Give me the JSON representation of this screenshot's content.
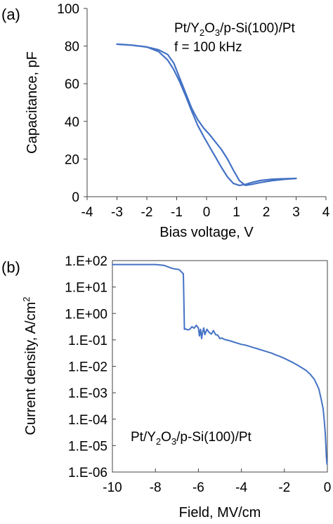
{
  "chart_data": [
    {
      "type": "line",
      "panel_label": "(a)",
      "annotation_line1_parts": [
        "Pt/Y",
        "2",
        "O",
        "3",
        "/p-Si(100)/Pt"
      ],
      "annotation_line2": "f = 100 kHz",
      "xlabel": "Bias voltage, V",
      "ylabel": "Capacitance, pF",
      "xlim": [
        -4,
        4
      ],
      "ylim": [
        0,
        100
      ],
      "xticks": [
        "-4",
        "-3",
        "-2",
        "-1",
        "0",
        "1",
        "2",
        "3",
        "4"
      ],
      "yticks": [
        "0",
        "20",
        "40",
        "60",
        "80",
        "100"
      ],
      "grid": false,
      "color": "#4472C4",
      "series": [
        {
          "x": [
            -3.0,
            -2.5,
            -2.0,
            -1.6,
            -1.3,
            -1.1,
            -0.9,
            -0.7,
            -0.5,
            -0.3,
            -0.1,
            0.1,
            0.3,
            0.5,
            0.7,
            0.9,
            1.1,
            1.3,
            1.5,
            1.8,
            2.2,
            2.6,
            3.0
          ],
          "y": [
            81,
            80.5,
            79.5,
            78,
            75.5,
            71,
            63,
            55,
            47,
            41,
            36.5,
            33,
            29,
            25,
            20,
            14,
            8.5,
            6,
            6.5,
            7.5,
            8.5,
            9.2,
            9.7
          ]
        },
        {
          "x": [
            3.0,
            2.6,
            2.2,
            1.8,
            1.5,
            1.3,
            1.1,
            0.9,
            0.7,
            0.5,
            0.3,
            0.1,
            -0.1,
            -0.3,
            -0.5,
            -0.7,
            -0.9,
            -1.1,
            -1.3,
            -1.6,
            -2.0,
            -2.5,
            -3.0
          ],
          "y": [
            9.7,
            9.5,
            9.3,
            8.6,
            7.5,
            6.5,
            6.0,
            7.0,
            10.5,
            15.5,
            21,
            26.5,
            32,
            38,
            45.5,
            53.5,
            61,
            67.5,
            72.5,
            77,
            79.5,
            80.5,
            81
          ]
        }
      ]
    },
    {
      "type": "line",
      "panel_label": "(b)",
      "annotation_parts": [
        "Pt/Y",
        "2",
        "O",
        "3",
        "/p-Si(100)/Pt"
      ],
      "xlabel": "Field, MV/cm",
      "ylabel_parts": [
        "Current density, A/cm",
        "2"
      ],
      "xlim": [
        -10,
        0
      ],
      "ylim_log10": [
        -6,
        2
      ],
      "y_scale": "log",
      "xticks": [
        "-10",
        "-8",
        "-6",
        "-4",
        "-2",
        "0"
      ],
      "yticks": [
        "1.E-06",
        "1.E-05",
        "1.E-04",
        "1.E-03",
        "1.E-02",
        "1.E-01",
        "1.E+00",
        "1.E+01",
        "1.E+02"
      ],
      "grid": false,
      "color": "#4472C4",
      "series": [
        {
          "x": [
            -10.0,
            -9.0,
            -8.0,
            -7.6,
            -7.2,
            -6.9,
            -6.7,
            -6.65,
            -6.6,
            -6.5,
            -6.4,
            -6.3,
            -6.2,
            -6.1,
            -6.0,
            -5.95,
            -5.9,
            -5.85,
            -5.8,
            -5.75,
            -5.7,
            -5.6,
            -5.5,
            -5.4,
            -5.3,
            -5.2,
            -5.1,
            -5.0,
            -4.9,
            -4.8,
            -4.6,
            -4.4,
            -4.2,
            -4.0,
            -3.8,
            -3.6,
            -3.4,
            -3.2,
            -3.0,
            -2.8,
            -2.6,
            -2.4,
            -2.2,
            -2.0,
            -1.8,
            -1.6,
            -1.4,
            -1.2,
            -1.0,
            -0.8,
            -0.6,
            -0.4,
            -0.3,
            -0.2,
            -0.15,
            -0.1,
            -0.07,
            -0.05,
            -0.03,
            -0.02
          ],
          "y_log10": [
            1.85,
            1.85,
            1.85,
            1.82,
            1.7,
            1.66,
            1.5,
            -0.6,
            -0.58,
            -0.62,
            -0.6,
            -0.5,
            -0.56,
            -0.45,
            -0.55,
            -0.85,
            -0.6,
            -0.95,
            -0.7,
            -0.55,
            -0.8,
            -0.6,
            -0.72,
            -0.78,
            -0.65,
            -0.8,
            -0.82,
            -0.95,
            -0.93,
            -0.98,
            -1.02,
            -1.07,
            -1.12,
            -1.17,
            -1.2,
            -1.25,
            -1.3,
            -1.35,
            -1.4,
            -1.45,
            -1.5,
            -1.57,
            -1.63,
            -1.7,
            -1.78,
            -1.86,
            -1.95,
            -2.05,
            -2.15,
            -2.3,
            -2.5,
            -2.85,
            -3.2,
            -3.6,
            -4.0,
            -4.5,
            -5.0,
            -5.4,
            -5.6,
            -5.7
          ]
        }
      ]
    }
  ]
}
